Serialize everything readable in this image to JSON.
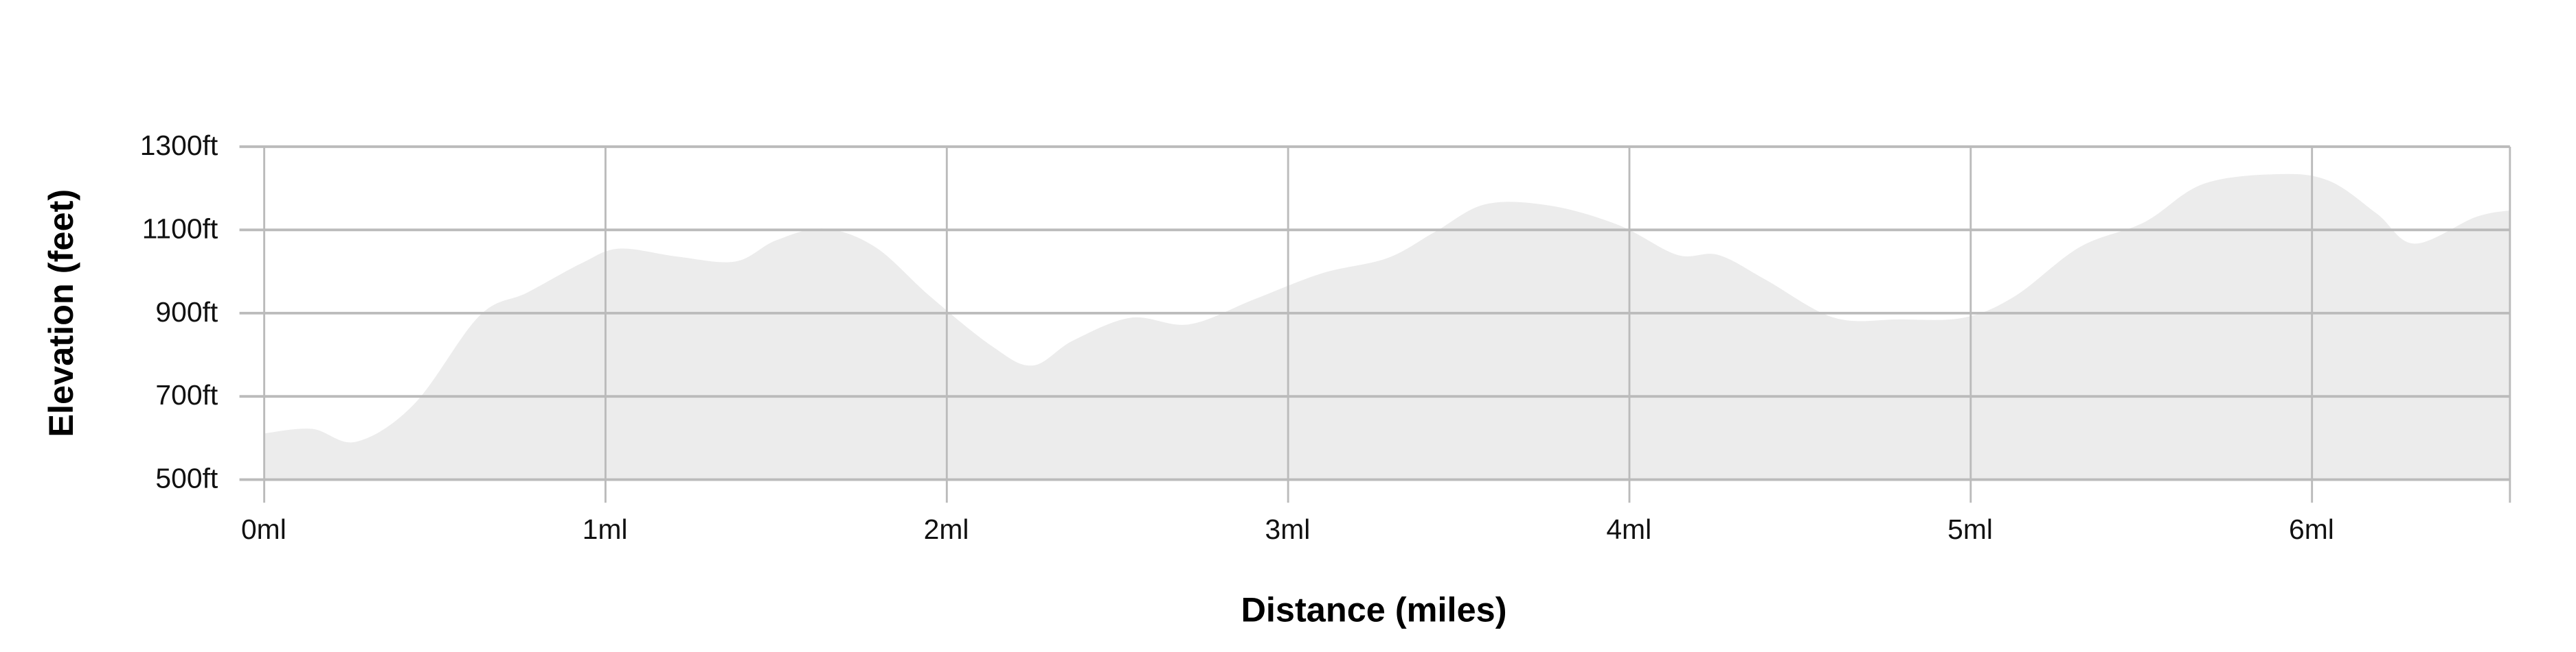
{
  "chart_data": {
    "type": "area",
    "title": "",
    "xlabel": "Distance (miles)",
    "ylabel": "Elevation (feet)",
    "xlim": [
      0,
      6.58
    ],
    "ylim": [
      500,
      1300
    ],
    "grid": true,
    "fill_color": "#ececec",
    "grid_color": "#bbbbbb",
    "x_ticks": [
      {
        "value": 0,
        "label": "0ml"
      },
      {
        "value": 1,
        "label": "1ml"
      },
      {
        "value": 2,
        "label": "2ml"
      },
      {
        "value": 3,
        "label": "3ml"
      },
      {
        "value": 4,
        "label": "4ml"
      },
      {
        "value": 5,
        "label": "5ml"
      },
      {
        "value": 6,
        "label": "6ml"
      }
    ],
    "y_ticks": [
      {
        "value": 500,
        "label": "500ft"
      },
      {
        "value": 700,
        "label": "700ft"
      },
      {
        "value": 900,
        "label": "900ft"
      },
      {
        "value": 1100,
        "label": "1100ft"
      },
      {
        "value": 1300,
        "label": "1300ft"
      }
    ],
    "x": [
      0,
      0.14,
      0.27,
      0.44,
      0.63,
      0.77,
      0.93,
      1.04,
      1.21,
      1.38,
      1.5,
      1.64,
      1.79,
      1.95,
      2.13,
      2.25,
      2.37,
      2.54,
      2.71,
      2.9,
      3.1,
      3.29,
      3.43,
      3.58,
      3.77,
      3.97,
      4.14,
      4.26,
      4.4,
      4.6,
      4.79,
      4.98,
      5.13,
      5.32,
      5.51,
      5.68,
      5.9,
      6.05,
      6.19,
      6.3,
      6.48,
      6.58
    ],
    "y": [
      611,
      622,
      591,
      682,
      893,
      949,
      1020,
      1055,
      1036,
      1024,
      1075,
      1103,
      1059,
      941,
      822,
      774,
      834,
      889,
      873,
      933,
      996,
      1032,
      1095,
      1162,
      1158,
      1111,
      1040,
      1040,
      980,
      889,
      885,
      889,
      941,
      1059,
      1119,
      1210,
      1234,
      1218,
      1139,
      1067,
      1131,
      1147
    ]
  }
}
